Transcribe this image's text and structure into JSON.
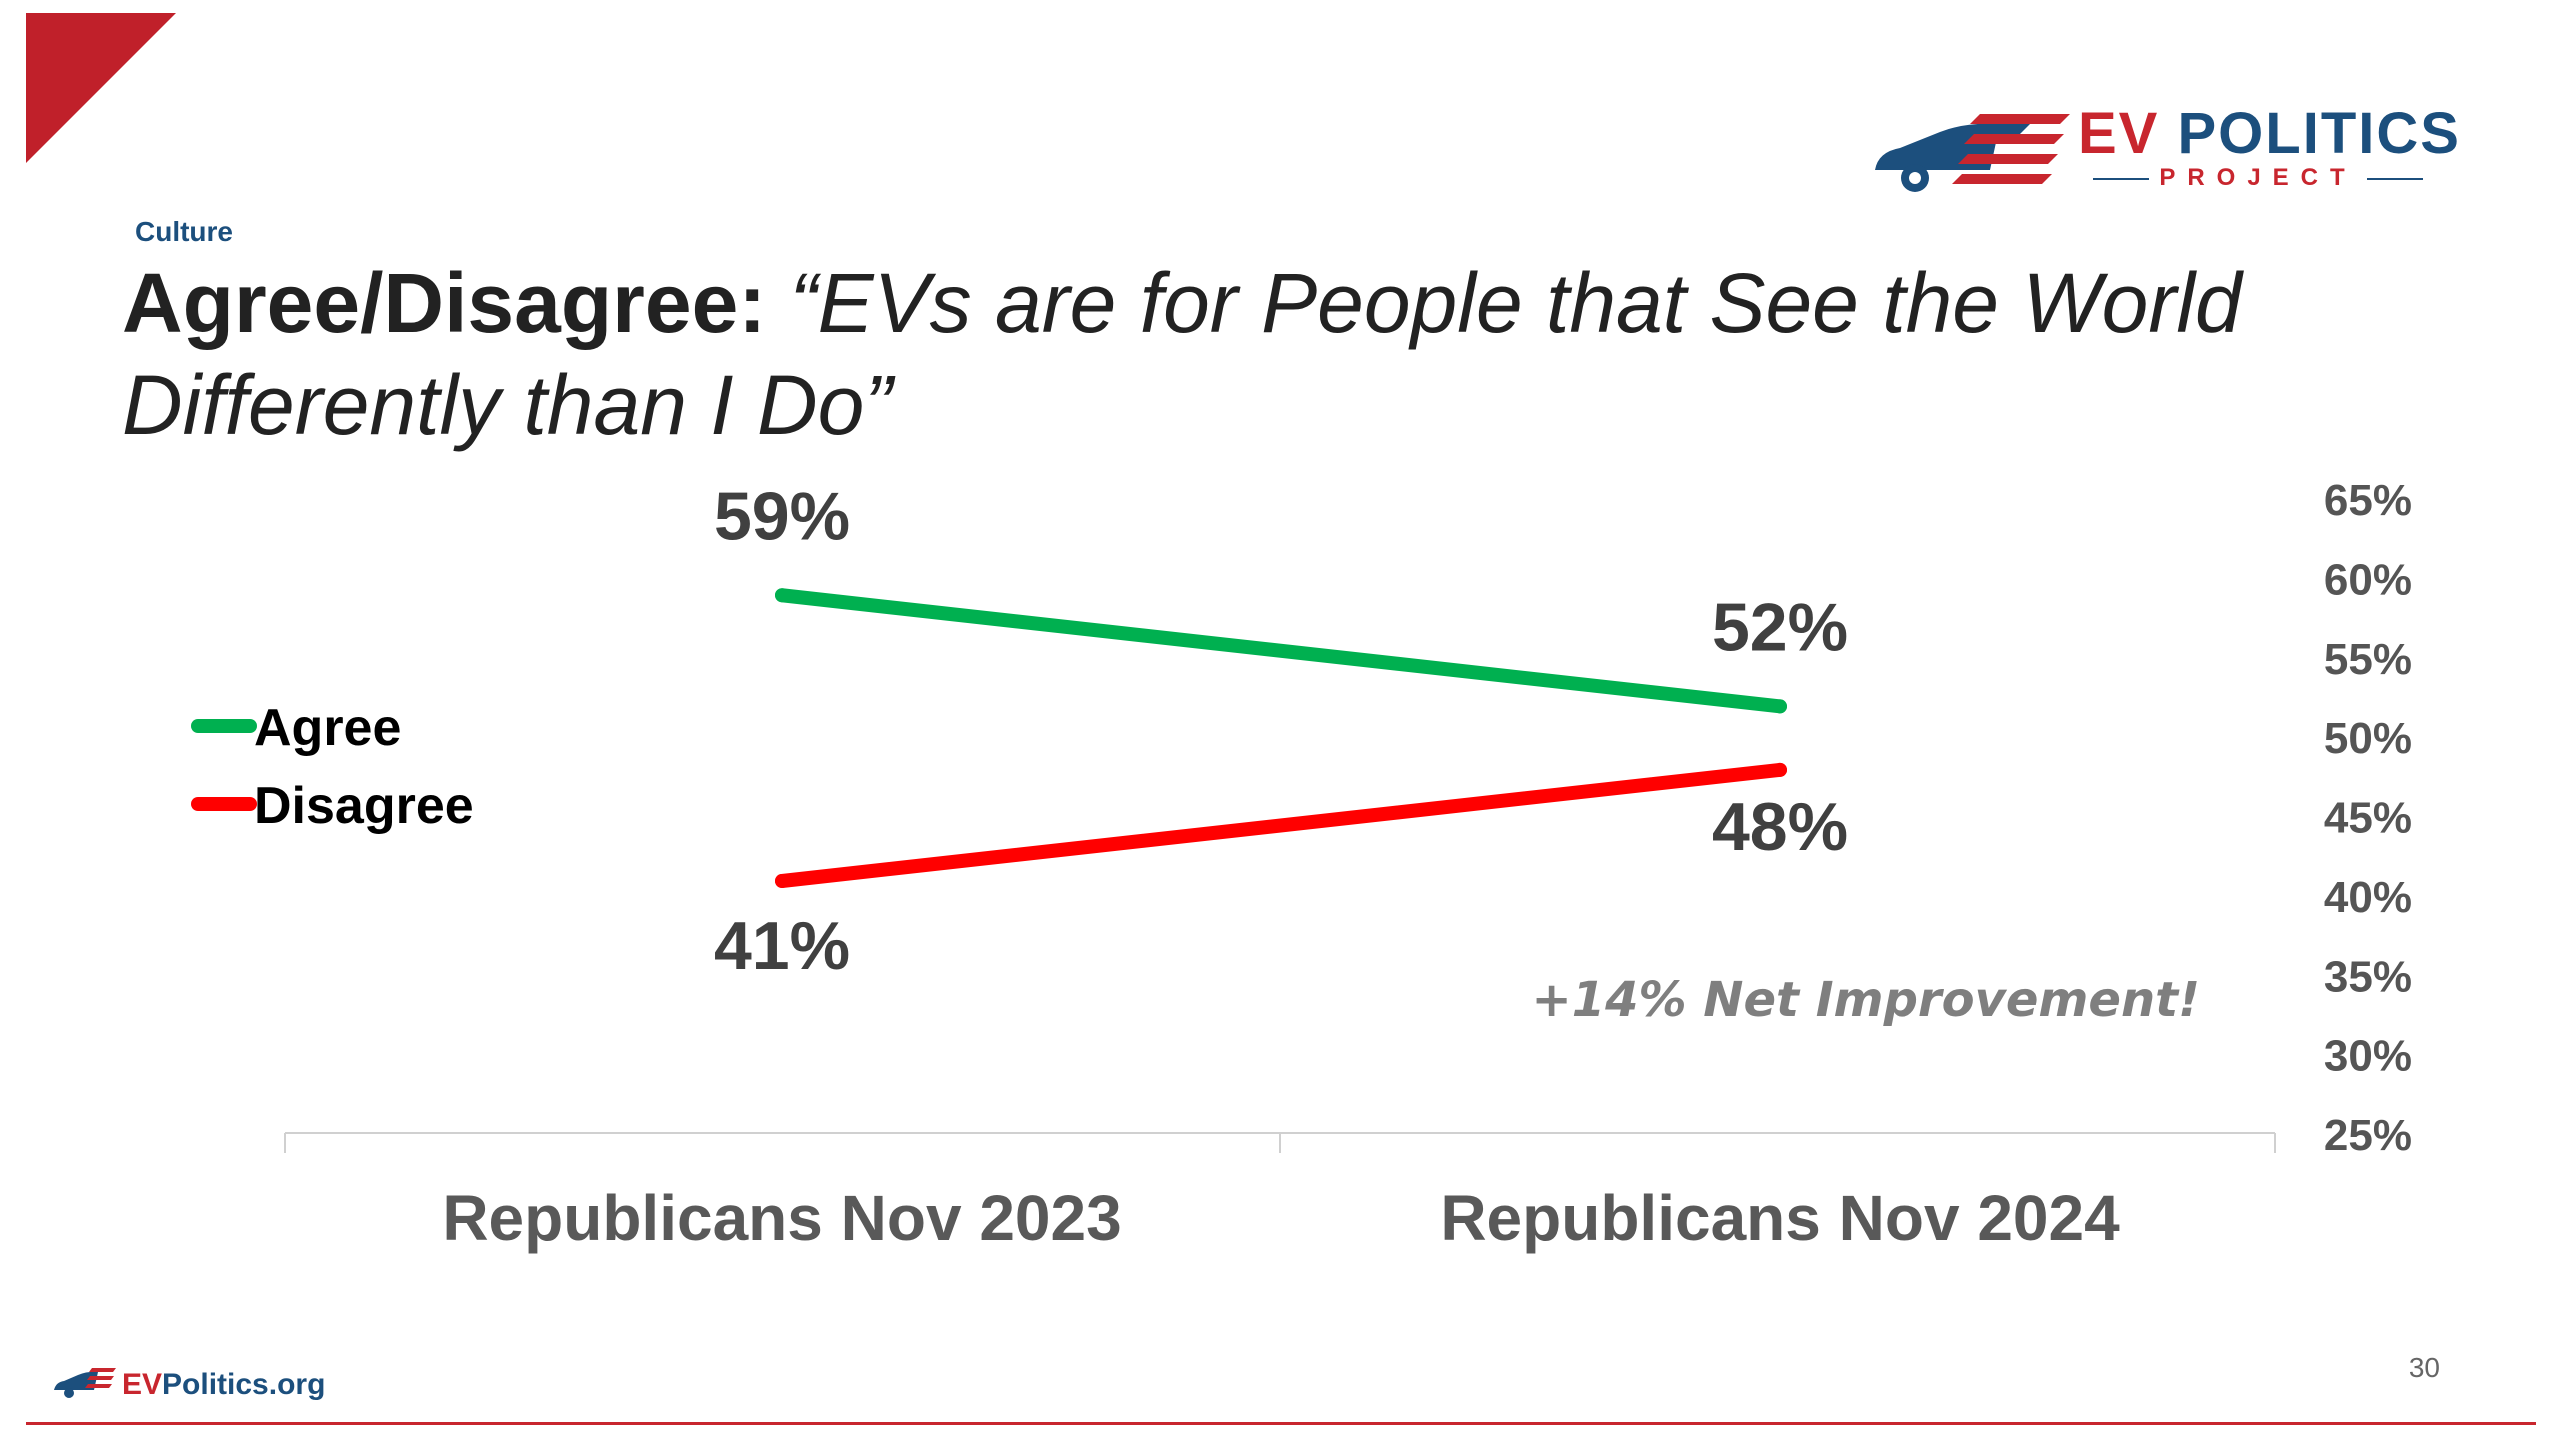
{
  "section_label": "Culture",
  "title": {
    "lead": "Agree/Disagree:",
    "quote": "“EVs are for People that See the World Differently than I Do”"
  },
  "logo": {
    "ev": "EV",
    "politics": "POLITICS",
    "project": "PROJECT"
  },
  "annotation": "+14% Net Improvement!",
  "footer": {
    "site_ev": "EV",
    "site_rest": "Politics.org",
    "page_number": "30"
  },
  "colors": {
    "brand_red": "#c8262e",
    "brand_blue": "#1c4f7d",
    "agree": "#00b050",
    "disagree": "#ff0000"
  },
  "chart_data": {
    "type": "line",
    "categories": [
      "Republicans Nov 2023",
      "Republicans Nov 2024"
    ],
    "series": [
      {
        "name": "Agree",
        "values": [
          59,
          52
        ],
        "labels": [
          "59%",
          "52%"
        ],
        "color": "#00b050"
      },
      {
        "name": "Disagree",
        "values": [
          41,
          48
        ],
        "labels": [
          "41%",
          "48%"
        ],
        "color": "#ff0000"
      }
    ],
    "ylim": [
      25,
      65
    ],
    "yticks": [
      65,
      60,
      55,
      50,
      45,
      40,
      35,
      30,
      25
    ],
    "ytick_labels": [
      "65%",
      "60%",
      "55%",
      "50%",
      "45%",
      "40%",
      "35%",
      "30%",
      "25%"
    ],
    "y_axis_side": "right",
    "legend_position": "left",
    "grid": false
  }
}
